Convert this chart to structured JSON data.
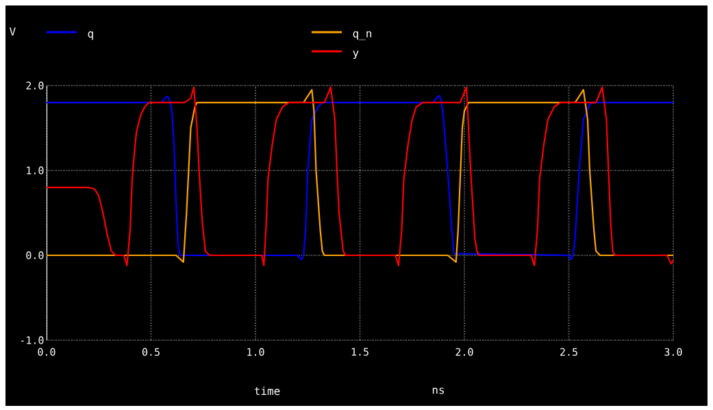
{
  "chart_data": {
    "type": "line",
    "ylabel": "V",
    "xlabel": "time",
    "annotations": [
      "ns"
    ],
    "xlim": [
      0,
      3
    ],
    "ylim": [
      -1,
      2
    ],
    "xticks": [
      {
        "value": 0,
        "label": "0.0"
      },
      {
        "value": 0.5,
        "label": "0.5"
      },
      {
        "value": 1,
        "label": "1.0"
      },
      {
        "value": 1.5,
        "label": "1.5"
      },
      {
        "value": 2,
        "label": "2.0"
      },
      {
        "value": 2.5,
        "label": "2.5"
      },
      {
        "value": 3,
        "label": "3.0"
      }
    ],
    "yticks": [
      {
        "value": -1,
        "label": "-1.0"
      },
      {
        "value": 0,
        "label": "0.0"
      },
      {
        "value": 1,
        "label": "1.0"
      },
      {
        "value": 2,
        "label": "2.0"
      }
    ],
    "grid": true,
    "legend": "top",
    "line_style": "solid",
    "series": [
      {
        "name": "q",
        "color": "#0000ff",
        "x": [
          0,
          0.55,
          0.57,
          0.58,
          0.59,
          0.6,
          0.61,
          0.62,
          0.63,
          0.64,
          1.2,
          1.22,
          1.23,
          1.24,
          1.25,
          1.27,
          1.3,
          1.32,
          1.85,
          1.87,
          1.88,
          1.89,
          1.9,
          1.92,
          1.94,
          1.95,
          2.5,
          2.51,
          2.52,
          2.53,
          2.55,
          2.57,
          2.6,
          2.62,
          3.0
        ],
        "values": [
          1.8,
          1.8,
          1.86,
          1.87,
          1.82,
          1.7,
          1.3,
          0.6,
          0.1,
          0,
          0,
          -0.05,
          0,
          0.3,
          1.0,
          1.6,
          1.75,
          1.8,
          1.8,
          1.86,
          1.88,
          1.82,
          1.6,
          1.0,
          0.3,
          0.02,
          0,
          -0.05,
          0,
          0.2,
          1.0,
          1.6,
          1.78,
          1.8,
          1.8
        ]
      },
      {
        "name": "q_n",
        "color": "#ffa500",
        "x": [
          0,
          0.62,
          0.655,
          0.67,
          0.68,
          0.69,
          0.71,
          0.72,
          1.23,
          1.27,
          1.28,
          1.29,
          1.31,
          1.32,
          1.33,
          1.92,
          1.96,
          1.97,
          1.98,
          1.99,
          2.0,
          2.02,
          2.53,
          2.57,
          2.59,
          2.6,
          2.62,
          2.63,
          2.65,
          3.0
        ],
        "values": [
          0,
          0,
          -0.08,
          0.5,
          1.0,
          1.5,
          1.75,
          1.8,
          1.8,
          1.95,
          1.7,
          1.0,
          0.3,
          0.05,
          0,
          0,
          -0.08,
          0.3,
          0.9,
          1.5,
          1.7,
          1.8,
          1.8,
          1.95,
          1.6,
          1.0,
          0.3,
          0.05,
          0,
          0
        ]
      },
      {
        "name": "y",
        "color": "#ff0000",
        "x": [
          0,
          0.2,
          0.23,
          0.25,
          0.27,
          0.29,
          0.31,
          0.33,
          0.37,
          0.385,
          0.4,
          0.41,
          0.42,
          0.43,
          0.45,
          0.47,
          0.49,
          0.66,
          0.69,
          0.705,
          0.72,
          0.73,
          0.745,
          0.76,
          0.78,
          1.03,
          1.04,
          1.05,
          1.06,
          1.08,
          1.1,
          1.13,
          1.16,
          1.33,
          1.36,
          1.38,
          1.39,
          1.4,
          1.42,
          1.43,
          1.67,
          1.685,
          1.7,
          1.71,
          1.73,
          1.75,
          1.77,
          1.8,
          1.98,
          2.01,
          2.02,
          2.03,
          2.05,
          2.06,
          2.07,
          2.32,
          2.335,
          2.35,
          2.36,
          2.38,
          2.4,
          2.43,
          2.46,
          2.63,
          2.66,
          2.68,
          2.69,
          2.7,
          2.71,
          2.72,
          2.97,
          2.99,
          3.0
        ],
        "values": [
          0.8,
          0.8,
          0.78,
          0.7,
          0.5,
          0.25,
          0.05,
          0,
          0,
          -0.12,
          0.3,
          0.9,
          1.2,
          1.45,
          1.65,
          1.75,
          1.8,
          1.8,
          1.85,
          1.98,
          1.5,
          1.0,
          0.4,
          0.05,
          0,
          0,
          -0.12,
          0.3,
          0.9,
          1.3,
          1.6,
          1.75,
          1.8,
          1.8,
          1.98,
          1.6,
          1.0,
          0.5,
          0.05,
          0,
          0,
          -0.12,
          0.3,
          0.9,
          1.3,
          1.6,
          1.75,
          1.8,
          1.8,
          1.98,
          1.5,
          1.0,
          0.2,
          0.05,
          0,
          0,
          -0.12,
          0.3,
          0.9,
          1.3,
          1.6,
          1.75,
          1.8,
          1.8,
          1.98,
          1.6,
          1.0,
          0.4,
          0.05,
          0,
          0,
          -0.1,
          -0.05
        ]
      }
    ]
  }
}
